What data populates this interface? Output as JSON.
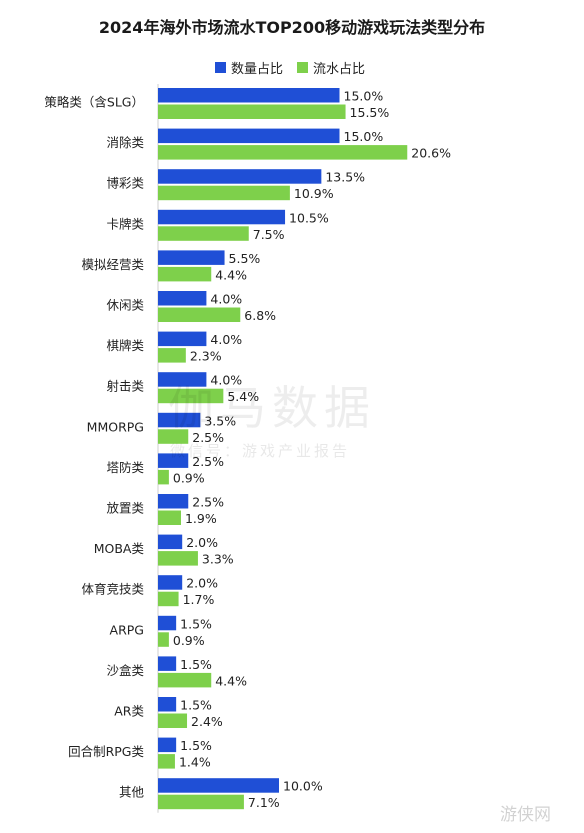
{
  "chart_data": {
    "type": "bar",
    "title": "2024年海外市场流水TOP200移动游戏玩法类型分布",
    "orientation": "horizontal",
    "categories": [
      "策略类（含SLG）",
      "消除类",
      "博彩类",
      "卡牌类",
      "模拟经营类",
      "休闲类",
      "棋牌类",
      "射击类",
      "MMORPG",
      "塔防类",
      "放置类",
      "MOBA类",
      "体育竞技类",
      "ARPG",
      "沙盒类",
      "AR类",
      "回合制RPG类",
      "其他"
    ],
    "series": [
      {
        "name": "数量占比",
        "color": "#1f4fd6",
        "values": [
          15.0,
          15.0,
          13.5,
          10.5,
          5.5,
          4.0,
          4.0,
          4.0,
          3.5,
          2.5,
          2.5,
          2.0,
          2.0,
          1.5,
          1.5,
          1.5,
          1.5,
          10.0
        ],
        "labels": [
          "15.0%",
          "15.0%",
          "13.5%",
          "10.5%",
          "5.5%",
          "4.0%",
          "4.0%",
          "4.0%",
          "3.5%",
          "2.5%",
          "2.5%",
          "2.0%",
          "2.0%",
          "1.5%",
          "1.5%",
          "1.5%",
          "1.5%",
          "10.0%"
        ]
      },
      {
        "name": "流水占比",
        "color": "#7ed04b",
        "values": [
          15.5,
          20.6,
          10.9,
          7.5,
          4.4,
          6.8,
          2.3,
          5.4,
          2.5,
          0.9,
          1.9,
          3.3,
          1.7,
          0.9,
          4.4,
          2.4,
          1.4,
          7.1
        ],
        "labels": [
          "15.5%",
          "20.6%",
          "10.9%",
          "7.5%",
          "4.4%",
          "6.8%",
          "2.3%",
          "5.4%",
          "2.5%",
          "0.9%",
          "1.9%",
          "3.3%",
          "1.7%",
          "0.9%",
          "4.4%",
          "2.4%",
          "1.4%",
          "7.1%"
        ]
      }
    ],
    "grid": false,
    "legend": "top"
  },
  "watermark": {
    "line1": "伽马数据",
    "line2": "微信号：游戏产业报告",
    "corner": "游侠网"
  }
}
